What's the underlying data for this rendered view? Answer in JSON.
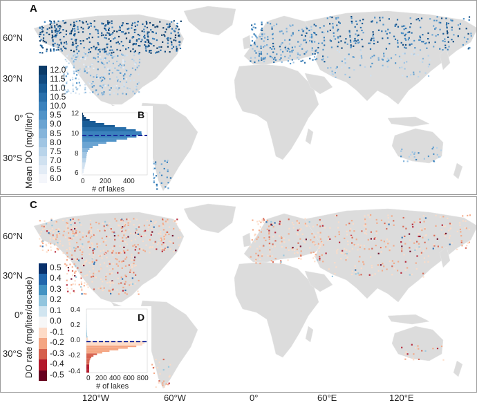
{
  "panel_a": {
    "label": "A",
    "legend_title": "Mean DO (mg/liter)",
    "legend_ticks": [
      "12.0",
      "11.5",
      "11.0",
      "10.5",
      "10.0",
      "9.5",
      "9.0",
      "8.5",
      "8.0",
      "7.5",
      "7.0",
      "6.5",
      "6.0"
    ],
    "legend_colors": [
      "#0b3b68",
      "#124b80",
      "#1a5d97",
      "#2a70ab",
      "#3b82bd",
      "#5093c8",
      "#6ba4d2",
      "#86b5db",
      "#a0c5e3",
      "#b9d4ea",
      "#d0e1f0",
      "#e3ecf6",
      "#f4f6fb"
    ],
    "inset": {
      "label": "B",
      "y_ticks": [
        "12",
        "10",
        "8",
        "6"
      ],
      "x_ticks": [
        "0",
        "200",
        "400"
      ],
      "x_label": "# of lakes",
      "mean_line": 9.8
    }
  },
  "panel_c": {
    "label": "C",
    "legend_title": "DO rate (mg/liter/decade)",
    "legend_ticks": [
      "0.5",
      "0.4",
      "0.3",
      "0.2",
      "0.1",
      "0.0",
      "-0.1",
      "-0.2",
      "-0.3",
      "-0.4",
      "-0.5"
    ],
    "legend_colors": [
      "#08306b",
      "#2166ac",
      "#4393c3",
      "#92c5de",
      "#d1e5f0",
      "#f7f7f7",
      "#fddbc7",
      "#f4a582",
      "#d6604d",
      "#b2182b",
      "#67001f"
    ],
    "inset": {
      "label": "D",
      "y_ticks": [
        "0.4",
        "0.2",
        "0.0",
        "-0.2",
        "-0.4"
      ],
      "x_ticks": [
        "0",
        "200",
        "400",
        "600",
        "800"
      ],
      "x_label": "# of lakes",
      "mean_line": -0.01
    }
  },
  "lat_labels": [
    "60°N",
    "30°N",
    "0°",
    "30°S"
  ],
  "lon_labels": [
    "120°W",
    "60°W",
    "0°",
    "60°E",
    "120°E"
  ]
}
